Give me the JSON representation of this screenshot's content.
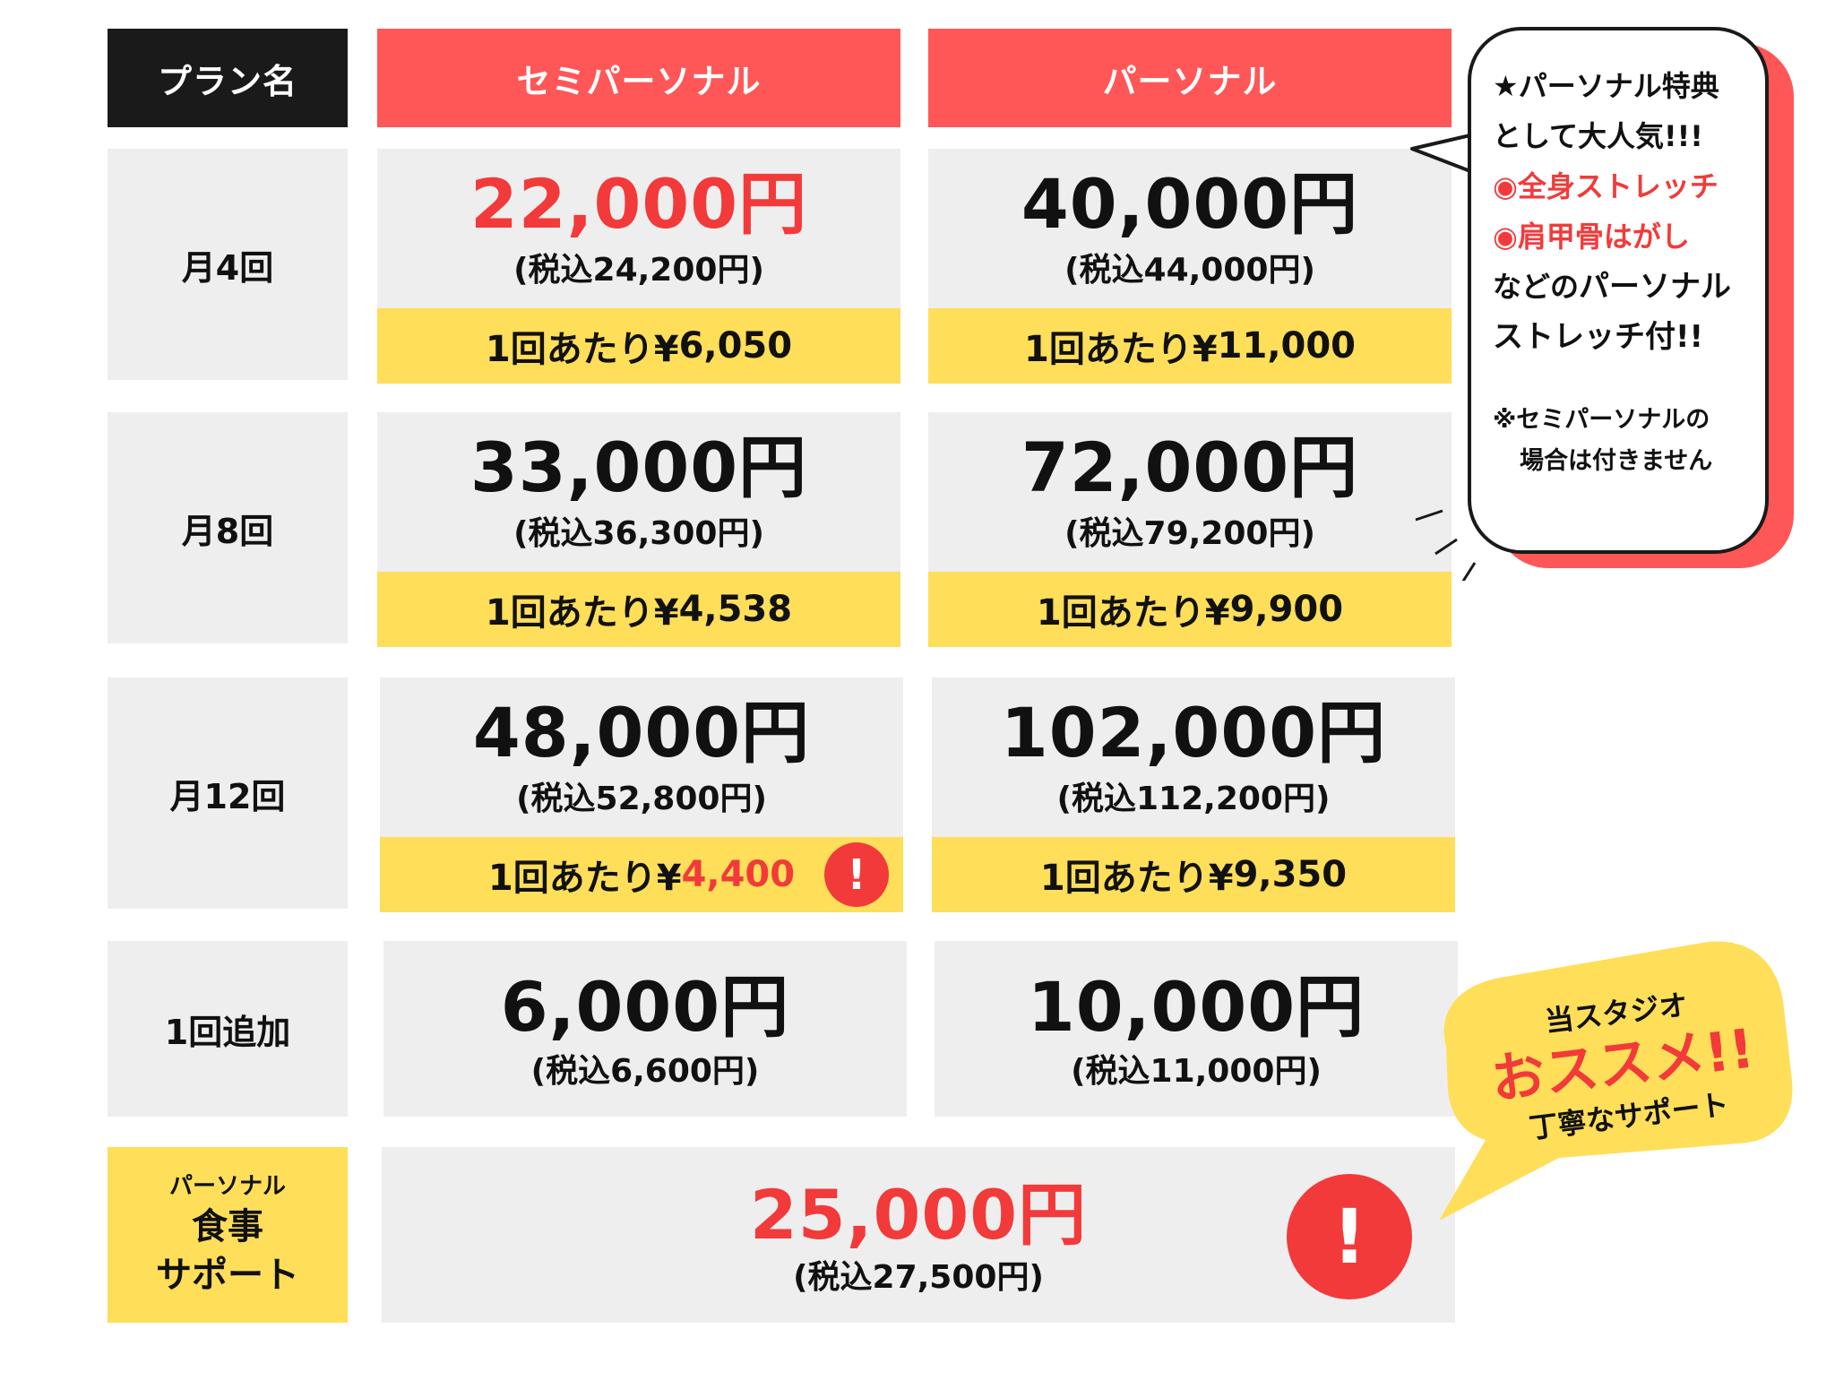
{
  "colors": {
    "header_dark": "#1a1a1a",
    "header_red": "#ff5757",
    "cell_bg": "#eeeeee",
    "highlight": "#ffde59",
    "accent_red": "#f23a3a"
  },
  "header": {
    "plan_name": "プラン名",
    "semi_personal": "セミパーソナル",
    "personal": "パーソナル"
  },
  "rows": [
    {
      "label": "月4回",
      "semi": {
        "price": "22,000円",
        "tax": "(税込24,200円)",
        "per_prefix": "1回あたり¥",
        "per_value": "6,050"
      },
      "personal": {
        "price": "40,000円",
        "tax": "(税込44,000円)",
        "per_prefix": "1回あたり¥",
        "per_value": "11,000"
      }
    },
    {
      "label": "月8回",
      "semi": {
        "price": "33,000円",
        "tax": "(税込36,300円)",
        "per_prefix": "1回あたり¥",
        "per_value": "4,538"
      },
      "personal": {
        "price": "72,000円",
        "tax": "(税込79,200円)",
        "per_prefix": "1回あたり¥",
        "per_value": "9,900"
      }
    },
    {
      "label": "月12回",
      "semi": {
        "price": "48,000円",
        "tax": "(税込52,800円)",
        "per_prefix": "1回あたり¥",
        "per_value": "4,400"
      },
      "personal": {
        "price": "102,000円",
        "tax": "(税込112,200円)",
        "per_prefix": "1回あたり¥",
        "per_value": "9,350"
      }
    },
    {
      "label": "1回追加",
      "semi": {
        "price": "6,000円",
        "tax": "(税込6,600円)"
      },
      "personal": {
        "price": "10,000円",
        "tax": "(税込11,000円)"
      }
    }
  ],
  "meal_support": {
    "label_line1": "パーソナル",
    "label_line2": "食事",
    "label_line3": "サポート",
    "price": "25,000円",
    "tax": "(税込27,500円)"
  },
  "alert_mark": "!",
  "personal_bubble": {
    "line1": "★パーソナル特典",
    "line2": "として大人気!!!",
    "line3": "◉全身ストレッチ",
    "line4": "◉肩甲骨はがし",
    "line5_prefix": "などの",
    "line5_bold": "パーソナル",
    "line6": "ストレッチ付!!",
    "note1": "※セミパーソナルの",
    "note2": "場合は付きません"
  },
  "recommend_bubble": {
    "line1": "当スタジオ",
    "line2": "おススメ!!",
    "line3": "丁寧なサポート"
  }
}
